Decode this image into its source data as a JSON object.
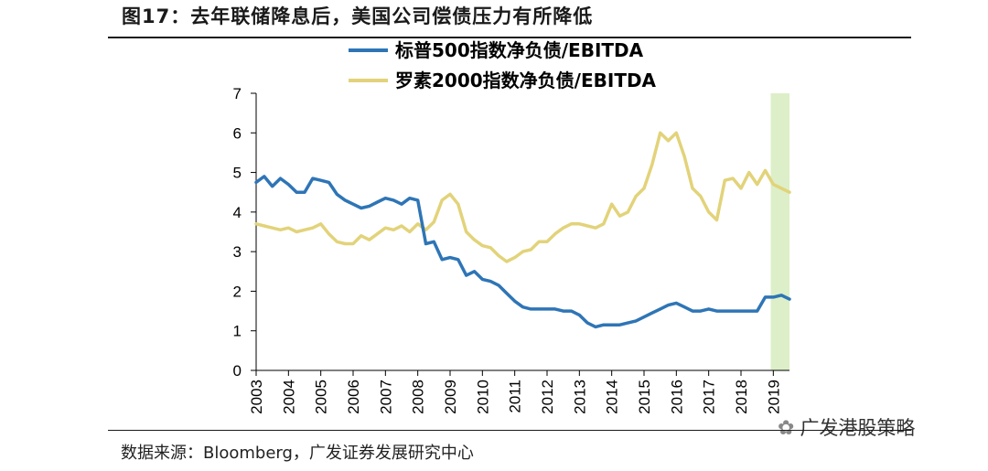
{
  "header": {
    "title": "图17：去年联储降息后，美国公司偿债压力有所降低"
  },
  "footer": {
    "source": "数据来源：Bloomberg，广发证券发展研究中心",
    "watermark": "广发港股策略"
  },
  "chart_data": {
    "type": "line",
    "title": "图17：去年联储降息后，美国公司偿债压力有所降低",
    "xlabel": "",
    "ylabel": "",
    "xlim": [
      2003,
      2019.5
    ],
    "ylim": [
      0,
      7
    ],
    "yticks": [
      "0",
      "1",
      "2",
      "3",
      "4",
      "5",
      "6",
      "7"
    ],
    "xticks": [
      "2003",
      "2004",
      "2005",
      "2006",
      "2007",
      "2008",
      "2009",
      "2010",
      "2011",
      "2012",
      "2013",
      "2014",
      "2015",
      "2016",
      "2017",
      "2018",
      "2019"
    ],
    "highlight": {
      "from": 2018.92,
      "to": 2019.5,
      "color": "#dcefc8"
    },
    "legend_position": "top-center",
    "series": [
      {
        "name": "标普500指数净负债/EBITDA",
        "color": "#2e75b6",
        "x": [
          2003.0,
          2003.25,
          2003.5,
          2003.75,
          2004.0,
          2004.25,
          2004.5,
          2004.75,
          2005.0,
          2005.25,
          2005.5,
          2005.75,
          2006.0,
          2006.25,
          2006.5,
          2006.75,
          2007.0,
          2007.25,
          2007.5,
          2007.75,
          2008.0,
          2008.25,
          2008.5,
          2008.75,
          2009.0,
          2009.25,
          2009.5,
          2009.75,
          2010.0,
          2010.25,
          2010.5,
          2010.75,
          2011.0,
          2011.25,
          2011.5,
          2011.75,
          2012.0,
          2012.25,
          2012.5,
          2012.75,
          2013.0,
          2013.25,
          2013.5,
          2013.75,
          2014.0,
          2014.25,
          2014.5,
          2014.75,
          2015.0,
          2015.25,
          2015.5,
          2015.75,
          2016.0,
          2016.25,
          2016.5,
          2016.75,
          2017.0,
          2017.25,
          2017.5,
          2017.75,
          2018.0,
          2018.25,
          2018.5,
          2018.75,
          2019.0,
          2019.25,
          2019.5
        ],
        "values": [
          4.75,
          4.9,
          4.65,
          4.85,
          4.7,
          4.5,
          4.5,
          4.85,
          4.8,
          4.75,
          4.45,
          4.3,
          4.2,
          4.1,
          4.15,
          4.25,
          4.35,
          4.3,
          4.2,
          4.35,
          4.3,
          3.2,
          3.25,
          2.8,
          2.85,
          2.8,
          2.4,
          2.5,
          2.3,
          2.25,
          2.15,
          1.95,
          1.75,
          1.6,
          1.55,
          1.55,
          1.55,
          1.55,
          1.5,
          1.5,
          1.4,
          1.2,
          1.1,
          1.15,
          1.15,
          1.15,
          1.2,
          1.25,
          1.35,
          1.45,
          1.55,
          1.65,
          1.7,
          1.6,
          1.5,
          1.5,
          1.55,
          1.5,
          1.5,
          1.5,
          1.5,
          1.5,
          1.5,
          1.85,
          1.85,
          1.9,
          1.8
        ]
      },
      {
        "name": "罗素2000指数净负债/EBITDA",
        "color": "#e2d37a",
        "x": [
          2003.0,
          2003.25,
          2003.5,
          2003.75,
          2004.0,
          2004.25,
          2004.5,
          2004.75,
          2005.0,
          2005.25,
          2005.5,
          2005.75,
          2006.0,
          2006.25,
          2006.5,
          2006.75,
          2007.0,
          2007.25,
          2007.5,
          2007.75,
          2008.0,
          2008.25,
          2008.5,
          2008.75,
          2009.0,
          2009.25,
          2009.5,
          2009.75,
          2010.0,
          2010.25,
          2010.5,
          2010.75,
          2011.0,
          2011.25,
          2011.5,
          2011.75,
          2012.0,
          2012.25,
          2012.5,
          2012.75,
          2013.0,
          2013.25,
          2013.5,
          2013.75,
          2014.0,
          2014.25,
          2014.5,
          2014.75,
          2015.0,
          2015.25,
          2015.5,
          2015.75,
          2016.0,
          2016.25,
          2016.5,
          2016.75,
          2017.0,
          2017.25,
          2017.5,
          2017.75,
          2018.0,
          2018.25,
          2018.5,
          2018.75,
          2019.0,
          2019.25,
          2019.5
        ],
        "values": [
          3.7,
          3.65,
          3.6,
          3.55,
          3.6,
          3.5,
          3.55,
          3.6,
          3.7,
          3.45,
          3.25,
          3.2,
          3.2,
          3.4,
          3.3,
          3.45,
          3.6,
          3.55,
          3.65,
          3.5,
          3.7,
          3.55,
          3.75,
          4.3,
          4.45,
          4.2,
          3.5,
          3.3,
          3.15,
          3.1,
          2.9,
          2.75,
          2.85,
          3.0,
          3.05,
          3.25,
          3.25,
          3.45,
          3.6,
          3.7,
          3.7,
          3.65,
          3.6,
          3.7,
          4.2,
          3.9,
          4.0,
          4.4,
          4.6,
          5.2,
          6.0,
          5.8,
          6.0,
          5.4,
          4.6,
          4.4,
          4.0,
          3.8,
          4.8,
          4.85,
          4.6,
          5.0,
          4.7,
          5.05,
          4.7,
          4.6,
          4.5
        ]
      }
    ]
  }
}
